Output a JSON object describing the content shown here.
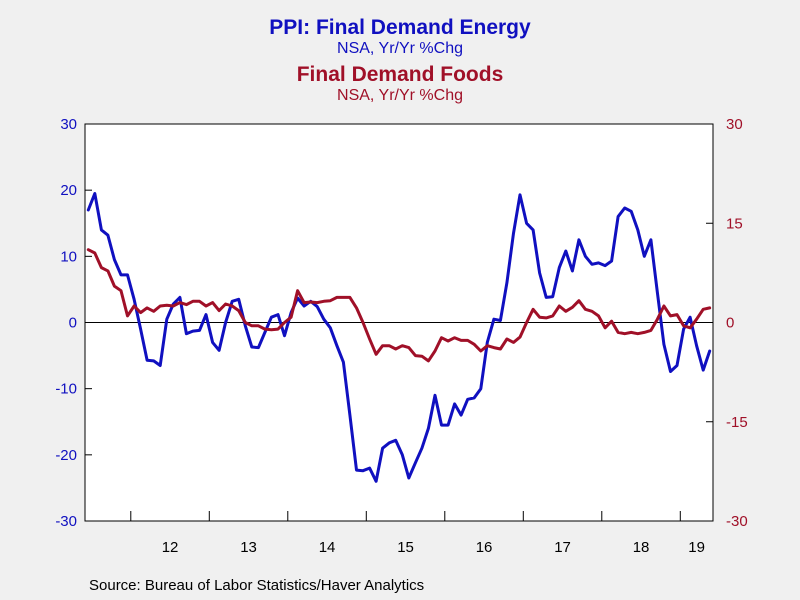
{
  "titles": {
    "primary_title": "PPI: Final Demand Energy",
    "primary_subtitle": "NSA, Yr/Yr %Chg",
    "secondary_title": "Final Demand Foods",
    "secondary_subtitle": "NSA, Yr/Yr %Chg"
  },
  "colors": {
    "energy": "#1010c0",
    "foods": "#a01028",
    "axis": "#000000",
    "left_ticks": "#1010c0",
    "right_ticks": "#a01028"
  },
  "source": "Source:  Bureau of Labor Statistics/Haver Analytics",
  "chart_data": {
    "type": "line",
    "x_start": "2011-06",
    "frequency": "monthly",
    "x_tick_labels": [
      "12",
      "13",
      "14",
      "15",
      "16",
      "17",
      "18",
      "19"
    ],
    "y_left": {
      "range": [
        -30,
        30
      ],
      "ticks": [
        30,
        20,
        10,
        0,
        -10,
        -20,
        -30
      ]
    },
    "y_right": {
      "range": [
        -30,
        30
      ],
      "ticks": [
        30,
        15,
        0,
        -15,
        -30
      ]
    },
    "zero_line": true,
    "series": [
      {
        "name": "PPI: Final Demand Energy",
        "axis": "left",
        "values": [
          17.0,
          19.5,
          14.0,
          13.2,
          9.5,
          7.2,
          7.2,
          3.5,
          -1.0,
          -5.7,
          -5.8,
          -6.5,
          0.5,
          2.8,
          3.8,
          -1.7,
          -1.3,
          -1.2,
          1.2,
          -3.0,
          -4.2,
          0.0,
          3.2,
          3.5,
          -0.5,
          -3.7,
          -3.8,
          -1.5,
          0.8,
          1.2,
          -2.0,
          1.5,
          3.7,
          2.5,
          3.2,
          2.4,
          0.5,
          -0.8,
          -3.5,
          -6.0,
          -14.0,
          -22.3,
          -22.4,
          -22.0,
          -24.0,
          -19.0,
          -18.2,
          -17.8,
          -20.0,
          -23.5,
          -21.2,
          -19.0,
          -16.0,
          -11.0,
          -15.5,
          -15.5,
          -12.3,
          -14.0,
          -11.6,
          -11.4,
          -10.0,
          -3.0,
          0.5,
          0.3,
          6.0,
          13.5,
          19.3,
          15.0,
          14.0,
          7.5,
          3.8,
          3.9,
          8.3,
          10.8,
          7.8,
          12.5,
          10.0,
          8.8,
          9.0,
          8.6,
          9.3,
          16.0,
          17.3,
          16.8,
          14.0,
          10.0,
          12.5,
          4.5,
          -3.3,
          -7.4,
          -6.5,
          -1.0,
          0.8,
          -3.5,
          -7.2,
          -4.3
        ]
      },
      {
        "name": "Final Demand Foods",
        "axis": "right",
        "values": [
          11.0,
          10.5,
          8.3,
          7.8,
          5.5,
          4.8,
          1.0,
          2.5,
          1.5,
          2.2,
          1.7,
          2.5,
          2.6,
          2.5,
          3.0,
          2.7,
          3.2,
          3.2,
          2.5,
          3.0,
          1.8,
          2.8,
          2.5,
          1.8,
          0.0,
          -0.5,
          -0.5,
          -1.0,
          -1.1,
          -1.0,
          0.0,
          0.8,
          4.8,
          3.0,
          3.1,
          3.0,
          3.2,
          3.3,
          3.8,
          3.8,
          3.8,
          2.2,
          0.0,
          -2.5,
          -4.8,
          -3.5,
          -3.5,
          -4.0,
          -3.5,
          -3.8,
          -5.0,
          -5.1,
          -5.8,
          -4.3,
          -2.3,
          -2.8,
          -2.3,
          -2.7,
          -2.7,
          -3.3,
          -4.3,
          -3.5,
          -3.8,
          -4.0,
          -2.5,
          -3.0,
          -2.2,
          0.0,
          2.0,
          0.8,
          0.7,
          1.0,
          2.5,
          1.7,
          2.3,
          3.3,
          2.0,
          1.7,
          1.0,
          -0.8,
          0.2,
          -1.5,
          -1.7,
          -1.5,
          -1.7,
          -1.5,
          -1.2,
          0.5,
          2.5,
          1.0,
          1.2,
          -0.5,
          -0.8,
          0.5,
          2.0,
          2.2
        ]
      }
    ]
  }
}
